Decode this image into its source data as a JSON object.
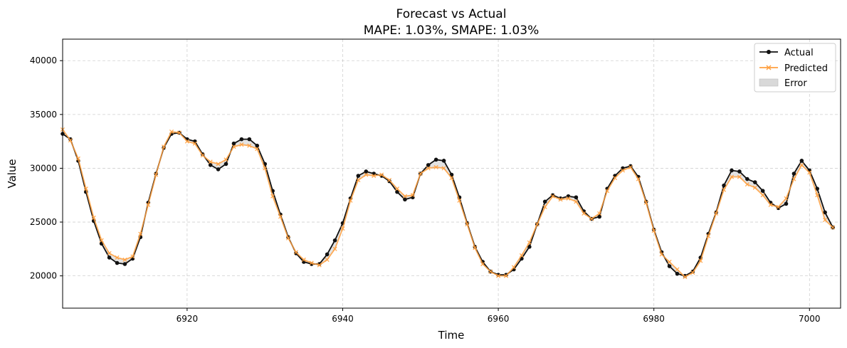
{
  "chart_data": {
    "type": "line",
    "title": "Forecast vs Actual",
    "subtitle": "MAPE: 1.03%, SMAPE: 1.03%",
    "xlabel": "Time",
    "ylabel": "Value",
    "xlim": [
      6904,
      7004
    ],
    "ylim": [
      17000,
      42000
    ],
    "xticks": [
      6920,
      6940,
      6960,
      6980,
      7000
    ],
    "yticks": [
      20000,
      25000,
      30000,
      35000,
      40000
    ],
    "grid": true,
    "legend_position": "top-right",
    "x_start": 6904,
    "series": [
      {
        "name": "Actual",
        "color": "#111111",
        "marker": "circle",
        "values": [
          33200,
          32700,
          30700,
          27800,
          25100,
          23000,
          21700,
          21200,
          21100,
          21600,
          23600,
          26800,
          29500,
          31900,
          33200,
          33300,
          32700,
          32500,
          31300,
          30300,
          29900,
          30400,
          32300,
          32700,
          32700,
          32100,
          30400,
          27900,
          25700,
          23600,
          22100,
          21300,
          21100,
          21100,
          22000,
          23300,
          24900,
          27200,
          29300,
          29700,
          29500,
          29300,
          28800,
          27800,
          27100,
          27300,
          29500,
          30300,
          30800,
          30700,
          29400,
          27300,
          24900,
          22700,
          21300,
          20400,
          20100,
          20100,
          20600,
          21600,
          22700,
          24800,
          26900,
          27500,
          27200,
          27400,
          27300,
          26000,
          25300,
          25500,
          28100,
          29300,
          30000,
          30200,
          29200,
          26900,
          24300,
          22200,
          20900,
          20200,
          20000,
          20400,
          21700,
          23900,
          25900,
          28400,
          29800,
          29700,
          29000,
          28700,
          27900,
          26800,
          26300,
          26700,
          29500,
          30700,
          29800,
          28100,
          25900,
          24500
        ]
      },
      {
        "name": "Predicted",
        "color": "#ffa040",
        "marker": "x",
        "values": [
          33600,
          32600,
          30900,
          28100,
          25400,
          23300,
          22100,
          21700,
          21500,
          21800,
          23900,
          26600,
          29400,
          32000,
          33400,
          33300,
          32500,
          32300,
          31200,
          30600,
          30400,
          30800,
          32000,
          32200,
          32100,
          31800,
          30000,
          27400,
          25500,
          23500,
          22200,
          21500,
          21200,
          21000,
          21500,
          22500,
          24400,
          27000,
          28900,
          29400,
          29300,
          29400,
          28900,
          28100,
          27400,
          27500,
          29500,
          30000,
          30100,
          30000,
          29100,
          27000,
          24800,
          22600,
          21100,
          20400,
          20000,
          20000,
          20800,
          21900,
          23100,
          24800,
          26400,
          27400,
          27100,
          27200,
          26900,
          25800,
          25300,
          25800,
          27900,
          29100,
          29800,
          30100,
          29000,
          26800,
          24200,
          22000,
          21300,
          20600,
          19900,
          20300,
          21400,
          23700,
          25800,
          28000,
          29200,
          29200,
          28500,
          28200,
          27500,
          26600,
          26400,
          27200,
          29000,
          30300,
          29600,
          27500,
          25200,
          24500
        ]
      }
    ],
    "error_band": {
      "name": "Error",
      "color": "#cccccc"
    }
  }
}
